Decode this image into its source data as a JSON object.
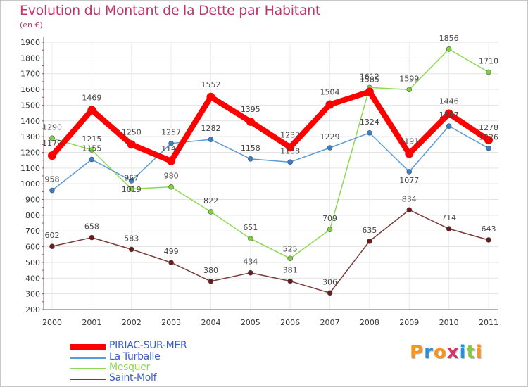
{
  "header": {
    "title": "Evolution du Montant de la Dette par Habitant",
    "unit": "(en €)"
  },
  "chart_data": {
    "type": "line",
    "title": "Evolution du Montant de la Dette par Habitant",
    "ylabel": "(en €)",
    "ylim": [
      200,
      1900
    ],
    "yticks": [
      200,
      300,
      400,
      500,
      600,
      700,
      800,
      900,
      1000,
      1100,
      1200,
      1300,
      1400,
      1500,
      1600,
      1700,
      1800,
      1900
    ],
    "categories": [
      "2000",
      "2001",
      "2002",
      "2003",
      "2004",
      "2005",
      "2006",
      "2007",
      "2008",
      "2009",
      "2010",
      "2011"
    ],
    "series": [
      {
        "name": "PIRIAC-SUR-MER",
        "color": "#ff0000",
        "values": [
          1179,
          1469,
          1250,
          1145,
          1552,
          1395,
          1232,
          1504,
          1585,
          1191,
          1446,
          1278
        ]
      },
      {
        "name": "La Turballe",
        "color": "#5b9bd5",
        "values": [
          958,
          1155,
          1019,
          1257,
          1282,
          1158,
          1138,
          1229,
          1324,
          1077,
          1367,
          1226
        ]
      },
      {
        "name": "Mesquer",
        "color": "#8fd855",
        "values": [
          1290,
          1215,
          967,
          980,
          822,
          651,
          525,
          709,
          1612,
          1599,
          1856,
          1710
        ]
      },
      {
        "name": "Saint-Molf",
        "color": "#7a3a3a",
        "values": [
          602,
          658,
          583,
          499,
          380,
          434,
          381,
          306,
          635,
          834,
          714,
          643
        ]
      }
    ],
    "legend_position": "bottom-left",
    "grid": true
  },
  "legend": {
    "items": [
      {
        "label": "PIRIAC-SUR-MER",
        "color": "#ff0000"
      },
      {
        "label": "La Turballe",
        "color": "#5b9bd5"
      },
      {
        "label": "Mesquer",
        "color": "#8fd855"
      },
      {
        "label": "Saint-Molf",
        "color": "#7a3a3a"
      }
    ]
  },
  "brand": {
    "logo_text": "Proxiti",
    "logo_colors": [
      "#f7941d",
      "#2a8fd6",
      "#f7941d",
      "#d6336c",
      "#2a8fd6",
      "#8dc63f",
      "#f7941d"
    ]
  }
}
